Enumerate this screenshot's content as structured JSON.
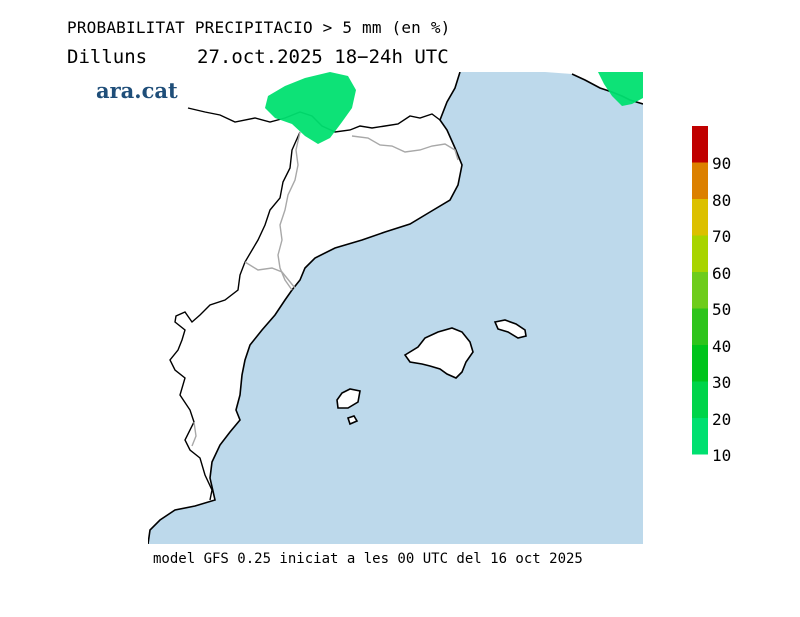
{
  "header": {
    "title": "PROBABILITAT PRECIPITACIO > 5 mm (en %)",
    "day": "Dilluns",
    "datetime": "27.oct.2025 18−24h UTC"
  },
  "logo": {
    "text": "ara.cat",
    "color": "#1f4e79"
  },
  "footer": {
    "text": "model GFS 0.25 iniciat a les 00 UTC del 16 oct 2025"
  },
  "colors": {
    "sea": "#bdd9eb",
    "land": "#ffffff",
    "coast": "#000000",
    "border": "#a8a8a8",
    "precip_10_20": "#00e070"
  },
  "legend": {
    "labels": [
      "10",
      "20",
      "30",
      "40",
      "50",
      "60",
      "70",
      "80",
      "90"
    ],
    "colors": [
      "#00e070",
      "#00d44a",
      "#00c41c",
      "#2ec41c",
      "#6ecc1c",
      "#a8d400",
      "#dcc000",
      "#dc8000",
      "#cc4000",
      "#c00000"
    ]
  }
}
